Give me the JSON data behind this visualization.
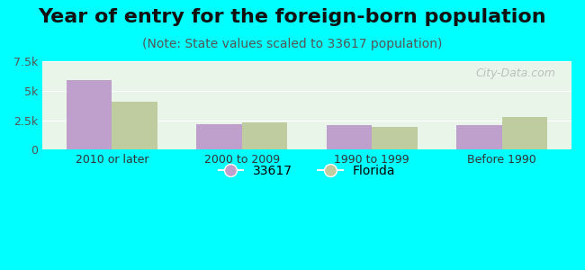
{
  "title": "Year of entry for the foreign-born population",
  "subtitle": "(Note: State values scaled to 33617 population)",
  "categories": [
    "2010 or later",
    "2000 to 2009",
    "1990 to 1999",
    "Before 1990"
  ],
  "values_33617": [
    5900,
    2150,
    2050,
    2050
  ],
  "values_florida": [
    4100,
    2350,
    1950,
    2750
  ],
  "color_33617": "#bf9fcc",
  "color_florida": "#bfcc9f",
  "ylim": [
    0,
    7500
  ],
  "yticks": [
    0,
    2500,
    5000,
    7500
  ],
  "ytick_labels": [
    "0",
    "2.5k",
    "5k",
    "7.5k"
  ],
  "background_color": "#00ffff",
  "bar_width": 0.35,
  "legend_labels": [
    "33617",
    "Florida"
  ],
  "watermark": "City-Data.com",
  "title_fontsize": 16,
  "subtitle_fontsize": 10,
  "axis_label_fontsize": 9,
  "legend_fontsize": 10
}
